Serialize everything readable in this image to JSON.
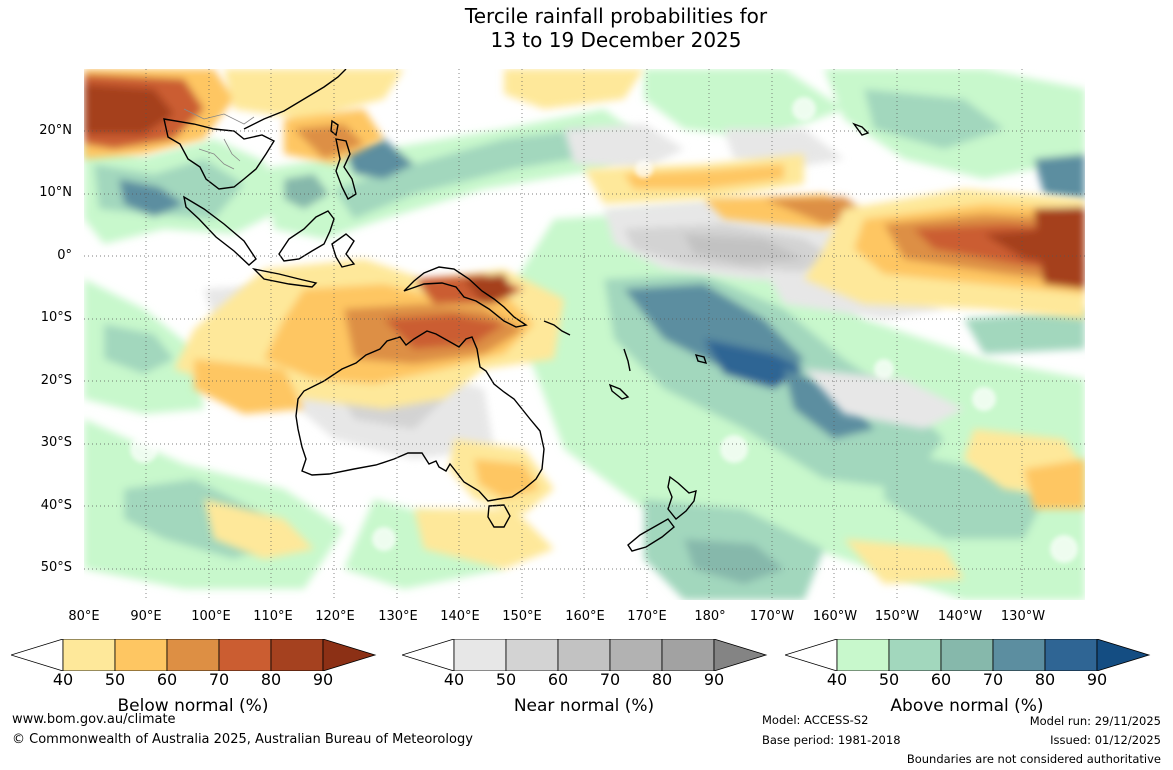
{
  "title": {
    "line1": "Tercile rainfall probabilities for",
    "line2": "13 to 19 December 2025"
  },
  "map": {
    "region": "Australia, Maritime Continent and western/central Pacific",
    "lat_labels": [
      "20°N",
      "10°N",
      "0°",
      "10°S",
      "20°S",
      "30°S",
      "40°S",
      "50°S"
    ],
    "lon_labels": [
      "80°E",
      "90°E",
      "100°E",
      "110°E",
      "120°E",
      "130°E",
      "140°E",
      "150°E",
      "160°E",
      "170°E",
      "180°",
      "170°W",
      "160°W",
      "150°W",
      "140°W",
      "130°W"
    ],
    "lat_range": [
      -55,
      30
    ],
    "lon_range": [
      80,
      240
    ],
    "colors": {
      "grid": "#555555",
      "coast": "#000000",
      "border": "#888888"
    }
  },
  "legends": [
    {
      "label": "Below normal (%)",
      "ticks": [
        "40",
        "50",
        "60",
        "70",
        "80",
        "90"
      ],
      "colors": [
        "#ffffff",
        "#fee89a",
        "#fec662",
        "#dd8f44",
        "#cb5d31",
        "#a5411f",
        "#8c3015"
      ]
    },
    {
      "label": "Near normal (%)",
      "ticks": [
        "40",
        "50",
        "60",
        "70",
        "80",
        "90"
      ],
      "colors": [
        "#ffffff",
        "#e7e7e7",
        "#d3d3d3",
        "#c2c2c2",
        "#b2b2b2",
        "#a2a2a2",
        "#848484"
      ]
    },
    {
      "label": "Above normal (%)",
      "ticks": [
        "40",
        "50",
        "60",
        "70",
        "80",
        "90"
      ],
      "colors": [
        "#ffffff",
        "#c8f8cc",
        "#a2d7bd",
        "#86b8ab",
        "#5c8ea0",
        "#2f6594",
        "#144d82"
      ]
    }
  ],
  "footer": {
    "website": "www.bom.gov.au/climate",
    "copyright": "© Commonwealth of Australia 2025, Australian Bureau of Meteorology",
    "model": "Model: ACCESS-S2",
    "base_period": "Base period: 1981-2018",
    "model_run": "Model run: 29/11/2025",
    "issued": "Issued: 01/12/2025",
    "disclaimer": "Boundaries are not considered authoritative"
  }
}
